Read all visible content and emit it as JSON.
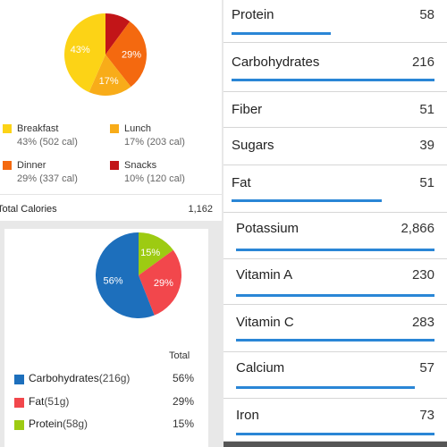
{
  "meal_breakdown": {
    "chart_data": {
      "type": "pie",
      "categories": [
        "Breakfast",
        "Lunch",
        "Dinner",
        "Snacks"
      ],
      "values": [
        43,
        17,
        29,
        10
      ],
      "labels": [
        "43%",
        "17%",
        "29%",
        ""
      ],
      "colors": [
        "#fcd316",
        "#f8ac19",
        "#f4690f",
        "#c21518"
      ]
    },
    "legend": [
      {
        "name": "Breakfast",
        "detail": "43% (502 cal)",
        "color": "#fcd316"
      },
      {
        "name": "Lunch",
        "detail": "17% (203 cal)",
        "color": "#f8ac19"
      },
      {
        "name": "Dinner",
        "detail": "29% (337 cal)",
        "color": "#f4690f"
      },
      {
        "name": "Snacks",
        "detail": "10% (120 cal)",
        "color": "#c21518"
      }
    ],
    "total_calories_label": "Total Calories",
    "total_calories_value": "1,162"
  },
  "macros": {
    "chart_data": {
      "type": "pie",
      "categories": [
        "Carbohydrates",
        "Fat",
        "Protein"
      ],
      "values": [
        56,
        29,
        15
      ],
      "labels": [
        "56%",
        "29%",
        "15%"
      ],
      "colors": [
        "#1d6fbc",
        "#f2474c",
        "#9dcb12"
      ]
    },
    "total_header": "Total",
    "rows": [
      {
        "name": "Carbohydrates",
        "grams": "(216g)",
        "pct": "56%",
        "color": "#1d6fbc"
      },
      {
        "name": "Fat",
        "grams": "(51g)",
        "pct": "29%",
        "color": "#f2474c"
      },
      {
        "name": "Protein",
        "grams": "(58g)",
        "pct": "15%",
        "color": "#9dcb12"
      }
    ]
  },
  "nutrients": [
    {
      "name": "Protein",
      "value": "58",
      "progress": 0.49
    },
    {
      "name": "Carbohydrates",
      "value": "216",
      "progress": 1.0
    },
    {
      "name": "Fiber",
      "value": "51",
      "progress": null
    },
    {
      "name": "Sugars",
      "value": "39",
      "progress": null
    },
    {
      "name": "Fat",
      "value": "51",
      "progress": 0.74
    },
    {
      "name": "Potassium",
      "value": "2,866",
      "progress": 1.0
    },
    {
      "name": "Vitamin A",
      "value": "230",
      "progress": 1.0
    },
    {
      "name": "Vitamin C",
      "value": "283",
      "progress": 1.0
    },
    {
      "name": "Calcium",
      "value": "57",
      "progress": 0.9
    },
    {
      "name": "Iron",
      "value": "73",
      "progress": 1.0
    }
  ],
  "colors": {
    "progress_bar": "#2a86d6"
  }
}
